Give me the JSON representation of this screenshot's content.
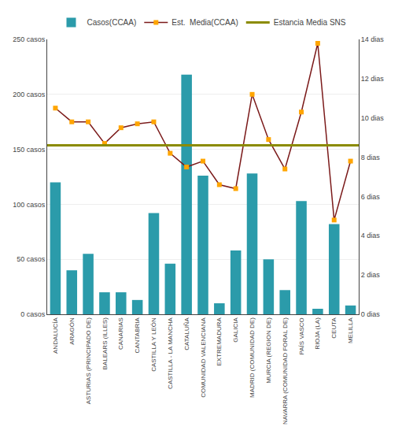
{
  "chart_data": {
    "type": "bar",
    "categories": [
      "ANDALUCÍA",
      "ARAGÓN",
      "ASTURIAS (PRINCIPADO DE)",
      "BALEARS (ILLES)",
      "CANARIAS",
      "CANTABRIA",
      "CASTILLA Y LEÓN",
      "CASTILLA - LA MANCHA",
      "CATALUÑA",
      "COMUNIDAD VALENCIANA",
      "EXTREMADURA",
      "GALICIA",
      "MADRID (COMUNIDAD DE)",
      "MURCIA (REGION DE)",
      "NAVARRA (COMUNIDAD FORAL DE)",
      "PAÍS VASCO",
      "RIOJA (LA)",
      "CEUTA",
      "MELILLA"
    ],
    "series": [
      {
        "name": "Casos(CCAA)",
        "type": "bar",
        "color": "#2B9BAA",
        "values": [
          120,
          40,
          55,
          20,
          20,
          13,
          92,
          46,
          218,
          126,
          10,
          58,
          128,
          50,
          22,
          103,
          5,
          82,
          8
        ]
      },
      {
        "name": "Est.  Media(CCAA)",
        "type": "line",
        "axis": "y2",
        "color": "#7B1A1A",
        "marker": "square",
        "line_style": "solid",
        "values": [
          10.5,
          9.8,
          9.8,
          8.7,
          9.5,
          9.7,
          9.8,
          8.2,
          7.5,
          7.8,
          6.6,
          6.4,
          11.2,
          8.9,
          7.4,
          10.3,
          13.8,
          4.8,
          7.8
        ]
      },
      {
        "name": "Estancia Media SNS",
        "type": "hline",
        "axis": "y2",
        "color": "#8B8B00",
        "line_style": "solid",
        "value": 8.6
      }
    ],
    "ylim": [
      0,
      250
    ],
    "yticks": [
      {
        "value": 0,
        "label": "0 casos"
      },
      {
        "value": 50,
        "label": "50 casos"
      },
      {
        "value": 100,
        "label": "100 casos"
      },
      {
        "value": 150,
        "label": "150 casos"
      },
      {
        "value": 200,
        "label": "200 casos"
      },
      {
        "value": 250,
        "label": "250 casos"
      }
    ],
    "y2lim": [
      0,
      14
    ],
    "y2ticks": [
      {
        "value": 0,
        "label": "0 dias"
      },
      {
        "value": 2,
        "label": "2 dias"
      },
      {
        "value": 4,
        "label": "4 dias"
      },
      {
        "value": 6,
        "label": "6 dias"
      },
      {
        "value": 8,
        "label": "8 dias"
      },
      {
        "value": 10,
        "label": "10 dias"
      },
      {
        "value": 12,
        "label": "12 dias"
      },
      {
        "value": 14,
        "label": "14 dias"
      }
    ],
    "grid": true,
    "legend": "top"
  }
}
